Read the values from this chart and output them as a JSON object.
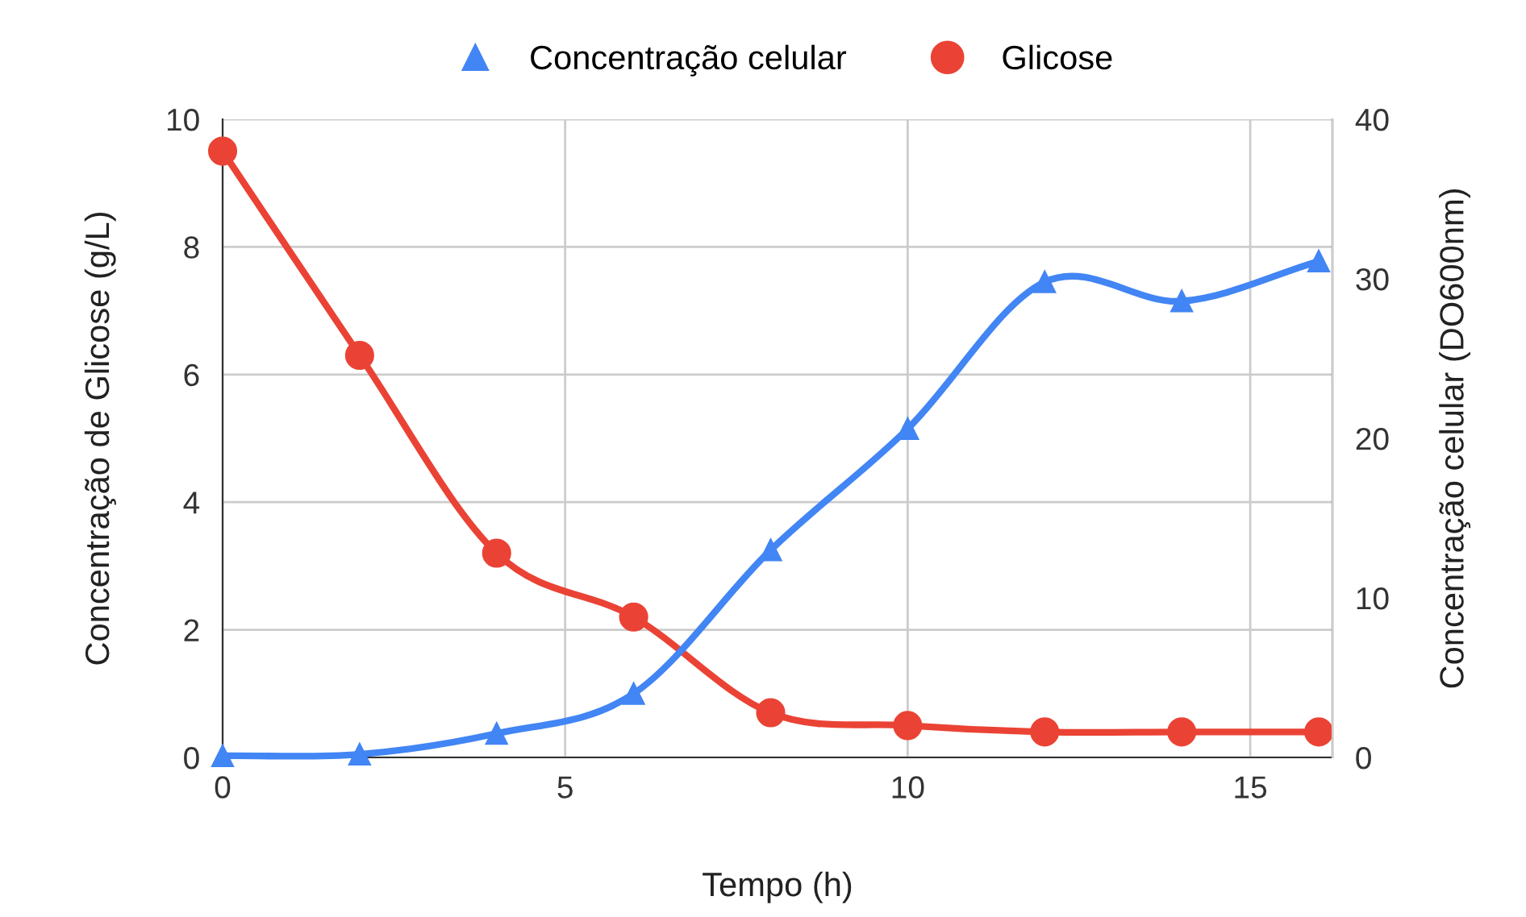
{
  "chart_data": {
    "type": "line",
    "xlabel": "Tempo (h)",
    "ylabel": "Concentração de Glicose (g/L)",
    "y2label": "Concentração celular (DO600nm)",
    "xlim": [
      0,
      16.2
    ],
    "xticks": [
      0,
      5,
      10,
      15
    ],
    "ylim": [
      0,
      10
    ],
    "yticks": [
      0,
      2,
      4,
      6,
      8,
      10
    ],
    "y2lim": [
      0,
      40
    ],
    "y2ticks": [
      0,
      10,
      20,
      30,
      40
    ],
    "grid": true,
    "legend": "top",
    "series": [
      {
        "name": "Concentração celular",
        "color": "#4285f4",
        "axis": "y2",
        "marker": "triangle",
        "x": [
          0,
          2,
          4,
          6,
          8,
          10,
          12,
          14,
          16
        ],
        "values": [
          0.1,
          0.2,
          1.5,
          4.0,
          13.0,
          20.6,
          29.8,
          28.6,
          31.1
        ]
      },
      {
        "name": "Glicose",
        "color": "#ea4335",
        "axis": "y",
        "marker": "circle",
        "x": [
          0,
          2,
          4,
          6,
          8,
          10,
          12,
          14,
          16
        ],
        "values": [
          9.5,
          6.3,
          3.2,
          2.2,
          0.7,
          0.5,
          0.4,
          0.4,
          0.4
        ]
      }
    ]
  }
}
